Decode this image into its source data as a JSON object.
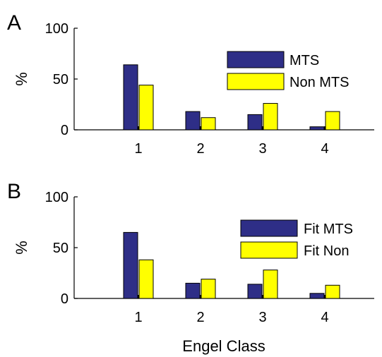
{
  "chart_data": [
    {
      "type": "bar",
      "panel_label": "A",
      "ylabel": "%",
      "xlabel": "",
      "categories": [
        "1",
        "2",
        "3",
        "4"
      ],
      "ylim": [
        0,
        100
      ],
      "yticks": [
        "0",
        "50",
        "100"
      ],
      "legend_position": "top-right",
      "series": [
        {
          "name": "MTS",
          "values": [
            64,
            18,
            15,
            3
          ],
          "color": "#2e2e87"
        },
        {
          "name": "Non MTS",
          "values": [
            44,
            12,
            26,
            18
          ],
          "color": "#ffff00"
        }
      ]
    },
    {
      "type": "bar",
      "panel_label": "B",
      "ylabel": "%",
      "xlabel": "Engel Class",
      "categories": [
        "1",
        "2",
        "3",
        "4"
      ],
      "ylim": [
        0,
        100
      ],
      "yticks": [
        "0",
        "50",
        "100"
      ],
      "legend_position": "top-right",
      "series": [
        {
          "name": "Fit MTS",
          "values": [
            65,
            15,
            14,
            5
          ],
          "color": "#2e2e87"
        },
        {
          "name": "Fit Non",
          "values": [
            38,
            19,
            28,
            13
          ],
          "color": "#ffff00"
        }
      ]
    }
  ]
}
